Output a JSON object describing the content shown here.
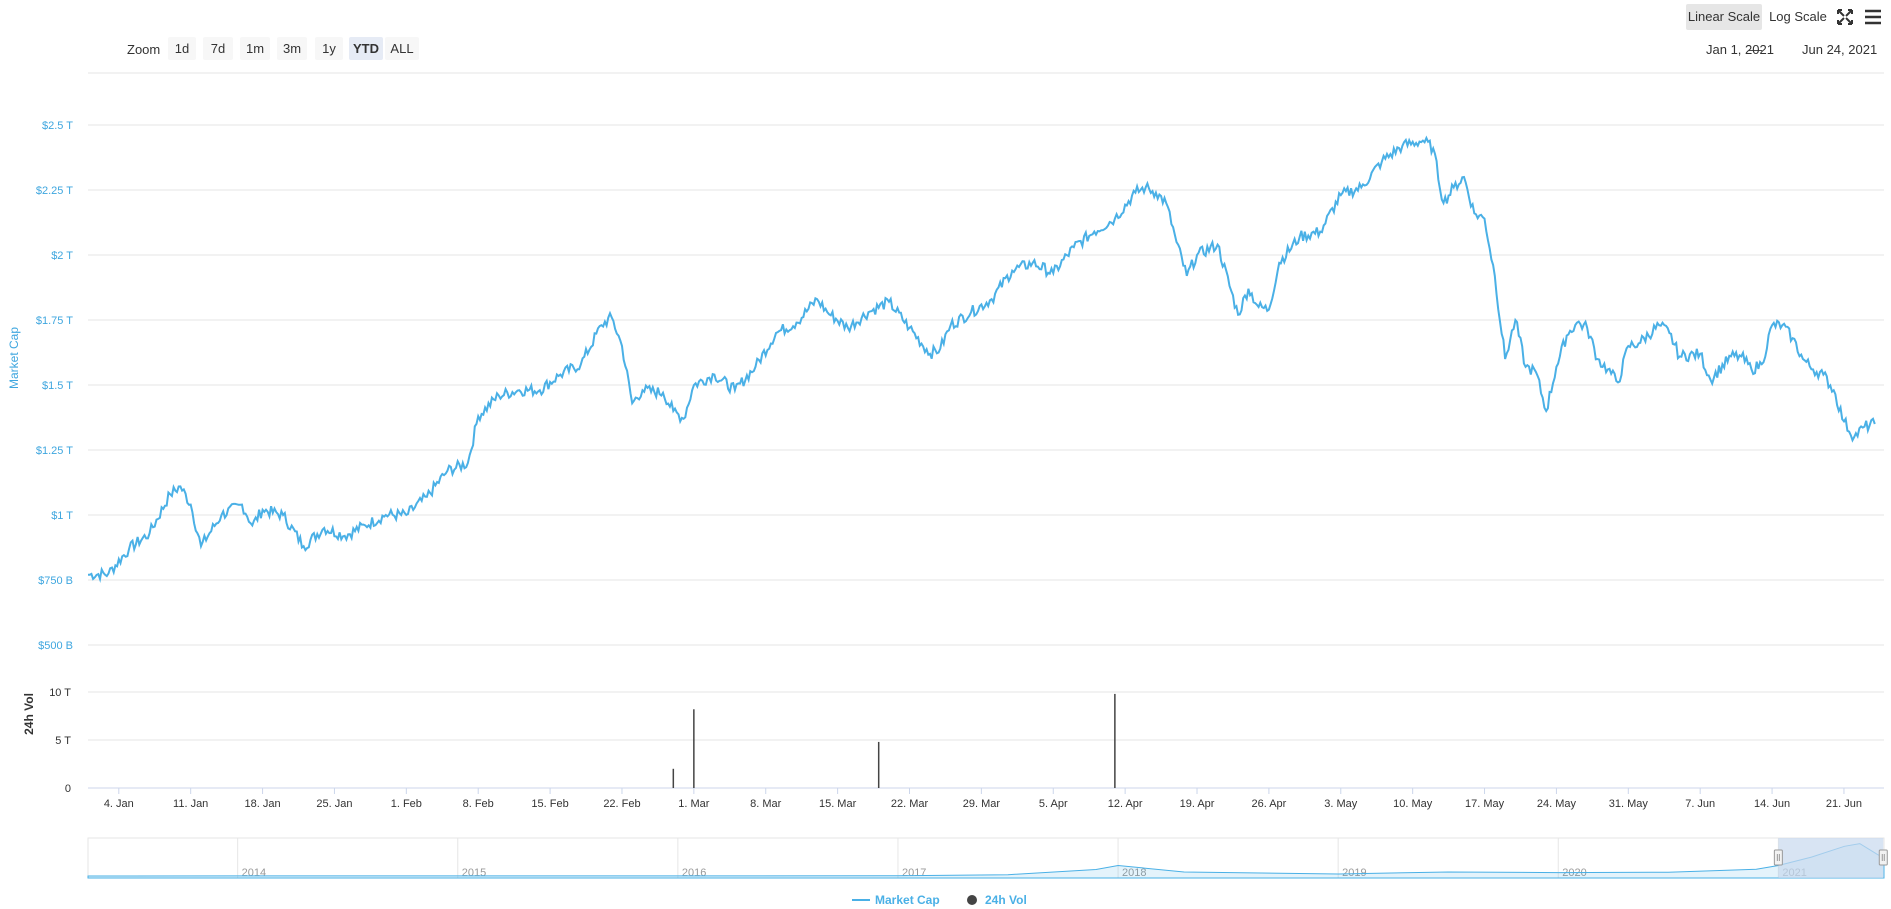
{
  "toolbar": {
    "zoom_label": "Zoom",
    "zoom_buttons": [
      "1d",
      "7d",
      "1m",
      "3m",
      "1y",
      "YTD",
      "ALL"
    ],
    "active_zoom": "YTD",
    "scale_buttons": [
      "Linear Scale",
      "Log Scale"
    ],
    "active_scale": "Linear Scale",
    "date_from": "Jan 1, 2021",
    "date_separator": "—",
    "date_to": "Jun 24, 2021",
    "fullscreen_icon": "expand-arrows-icon",
    "menu_icon": "hamburger-menu-icon"
  },
  "colors": {
    "market_cap": "#4ab0e6",
    "volume": "#444444",
    "navigator_mask": "#c7d9ee"
  },
  "chart_data": [
    {
      "type": "line",
      "title": "",
      "ylabel": "Market Cap",
      "ylim": [
        500,
        2700
      ],
      "y_unit": "B USD",
      "yticks": [
        "$500 B",
        "$750 B",
        "$1 T",
        "$1.25 T",
        "$1.5 T",
        "$1.75 T",
        "$2 T",
        "$2.25 T",
        "$2.5 T"
      ],
      "ytick_values": [
        500,
        750,
        1000,
        1250,
        1500,
        1750,
        2000,
        2250,
        2500
      ],
      "x_range": [
        "2021-01-01",
        "2021-06-24"
      ],
      "xticks": [
        "4. Jan",
        "11. Jan",
        "18. Jan",
        "25. Jan",
        "1. Feb",
        "8. Feb",
        "15. Feb",
        "22. Feb",
        "1. Mar",
        "8. Mar",
        "15. Mar",
        "22. Mar",
        "29. Mar",
        "5. Apr",
        "12. Apr",
        "19. Apr",
        "26. Apr",
        "3. May",
        "10. May",
        "17. May",
        "24. May",
        "31. May",
        "7. Jun",
        "14. Jun",
        "21. Jun"
      ],
      "xtick_dates": [
        "2021-01-04",
        "2021-01-11",
        "2021-01-18",
        "2021-01-25",
        "2021-02-01",
        "2021-02-08",
        "2021-02-15",
        "2021-02-22",
        "2021-03-01",
        "2021-03-08",
        "2021-03-15",
        "2021-03-22",
        "2021-03-29",
        "2021-04-05",
        "2021-04-12",
        "2021-04-19",
        "2021-04-26",
        "2021-05-03",
        "2021-05-10",
        "2021-05-17",
        "2021-05-24",
        "2021-05-31",
        "2021-06-07",
        "2021-06-14",
        "2021-06-21"
      ],
      "grid": true,
      "series": [
        {
          "name": "Market Cap",
          "x": [
            "2021-01-01",
            "2021-01-03",
            "2021-01-05",
            "2021-01-07",
            "2021-01-09",
            "2021-01-10",
            "2021-01-11",
            "2021-01-12",
            "2021-01-14",
            "2021-01-16",
            "2021-01-17",
            "2021-01-18",
            "2021-01-20",
            "2021-01-22",
            "2021-01-24",
            "2021-01-26",
            "2021-01-28",
            "2021-01-30",
            "2021-02-01",
            "2021-02-03",
            "2021-02-05",
            "2021-02-07",
            "2021-02-08",
            "2021-02-10",
            "2021-02-12",
            "2021-02-14",
            "2021-02-16",
            "2021-02-18",
            "2021-02-20",
            "2021-02-21",
            "2021-02-22",
            "2021-02-23",
            "2021-02-24",
            "2021-02-26",
            "2021-02-27",
            "2021-02-28",
            "2021-03-01",
            "2021-03-03",
            "2021-03-05",
            "2021-03-07",
            "2021-03-09",
            "2021-03-11",
            "2021-03-13",
            "2021-03-14",
            "2021-03-16",
            "2021-03-18",
            "2021-03-20",
            "2021-03-22",
            "2021-03-24",
            "2021-03-25",
            "2021-03-26",
            "2021-03-28",
            "2021-03-30",
            "2021-04-01",
            "2021-04-03",
            "2021-04-05",
            "2021-04-07",
            "2021-04-09",
            "2021-04-11",
            "2021-04-13",
            "2021-04-14",
            "2021-04-15",
            "2021-04-16",
            "2021-04-17",
            "2021-04-18",
            "2021-04-19",
            "2021-04-21",
            "2021-04-23",
            "2021-04-24",
            "2021-04-25",
            "2021-04-26",
            "2021-04-27",
            "2021-04-29",
            "2021-05-01",
            "2021-05-03",
            "2021-05-05",
            "2021-05-07",
            "2021-05-09",
            "2021-05-11",
            "2021-05-12",
            "2021-05-13",
            "2021-05-14",
            "2021-05-15",
            "2021-05-16",
            "2021-05-17",
            "2021-05-18",
            "2021-05-19",
            "2021-05-20",
            "2021-05-21",
            "2021-05-22",
            "2021-05-23",
            "2021-05-24",
            "2021-05-25",
            "2021-05-26",
            "2021-05-27",
            "2021-05-28",
            "2021-05-29",
            "2021-05-30",
            "2021-05-31",
            "2021-06-01",
            "2021-06-03",
            "2021-06-04",
            "2021-06-05",
            "2021-06-07",
            "2021-06-08",
            "2021-06-10",
            "2021-06-11",
            "2021-06-12",
            "2021-06-13",
            "2021-06-14",
            "2021-06-15",
            "2021-06-16",
            "2021-06-17",
            "2021-06-18",
            "2021-06-19",
            "2021-06-20",
            "2021-06-21",
            "2021-06-22",
            "2021-06-23",
            "2021-06-24"
          ],
          "y": [
            770,
            775,
            870,
            930,
            1080,
            1110,
            1040,
            880,
            1000,
            1040,
            960,
            1020,
            1000,
            880,
            950,
            920,
            960,
            1000,
            1000,
            1070,
            1170,
            1200,
            1380,
            1460,
            1480,
            1480,
            1540,
            1580,
            1730,
            1760,
            1650,
            1430,
            1480,
            1470,
            1400,
            1370,
            1500,
            1540,
            1480,
            1570,
            1700,
            1740,
            1830,
            1780,
            1720,
            1780,
            1820,
            1720,
            1620,
            1640,
            1730,
            1780,
            1830,
            1940,
            1970,
            1930,
            2030,
            2090,
            2140,
            2240,
            2260,
            2240,
            2200,
            2050,
            1920,
            2000,
            2040,
            1770,
            1870,
            1800,
            1790,
            1970,
            2070,
            2090,
            2230,
            2260,
            2360,
            2420,
            2440,
            2410,
            2200,
            2260,
            2300,
            2160,
            2140,
            1920,
            1600,
            1750,
            1570,
            1550,
            1400,
            1570,
            1690,
            1740,
            1720,
            1600,
            1560,
            1510,
            1650,
            1660,
            1730,
            1700,
            1610,
            1620,
            1520,
            1610,
            1610,
            1560,
            1580,
            1730,
            1730,
            1680,
            1600,
            1560,
            1540,
            1480,
            1360,
            1300,
            1340,
            1350
          ]
        }
      ]
    },
    {
      "type": "bar",
      "title": "",
      "ylabel": "24h Vol",
      "ylim": [
        0,
        10
      ],
      "y_unit": "T USD",
      "yticks": [
        "0",
        "5 T",
        "10 T"
      ],
      "ytick_values": [
        0,
        5,
        10
      ],
      "x_range": [
        "2021-01-01",
        "2021-06-24"
      ],
      "series": [
        {
          "name": "24h Vol",
          "x": [
            "2021-02-27",
            "2021-03-01",
            "2021-03-19",
            "2021-04-11"
          ],
          "values": [
            2.0,
            8.2,
            4.8,
            9.8
          ]
        }
      ]
    },
    {
      "type": "area",
      "title": "",
      "xticks": [
        "2014",
        "2015",
        "2016",
        "2017",
        "2018",
        "2019",
        "2020",
        "2021"
      ],
      "xtick_years": [
        2014,
        2015,
        2016,
        2017,
        2018,
        2019,
        2020,
        2021
      ],
      "x_range": [
        2013.32,
        2021.48
      ],
      "selected_range": [
        "2021-01-01",
        "2021-06-24"
      ],
      "series": [
        {
          "name": "Market Cap",
          "x": [
            2013.32,
            2014.0,
            2015.0,
            2016.0,
            2017.0,
            2017.5,
            2017.9,
            2018.0,
            2018.3,
            2019.0,
            2019.5,
            2020.0,
            2020.5,
            2020.9,
            2021.0,
            2021.15,
            2021.3,
            2021.37,
            2021.45,
            2021.48
          ],
          "y": [
            1,
            10,
            5,
            7,
            18,
            100,
            480,
            780,
            300,
            150,
            300,
            250,
            280,
            500,
            780,
            1400,
            2200,
            2400,
            1600,
            1350
          ]
        }
      ]
    }
  ],
  "legend": {
    "position": "bottom",
    "items": [
      "Market Cap",
      "24h Vol"
    ]
  }
}
